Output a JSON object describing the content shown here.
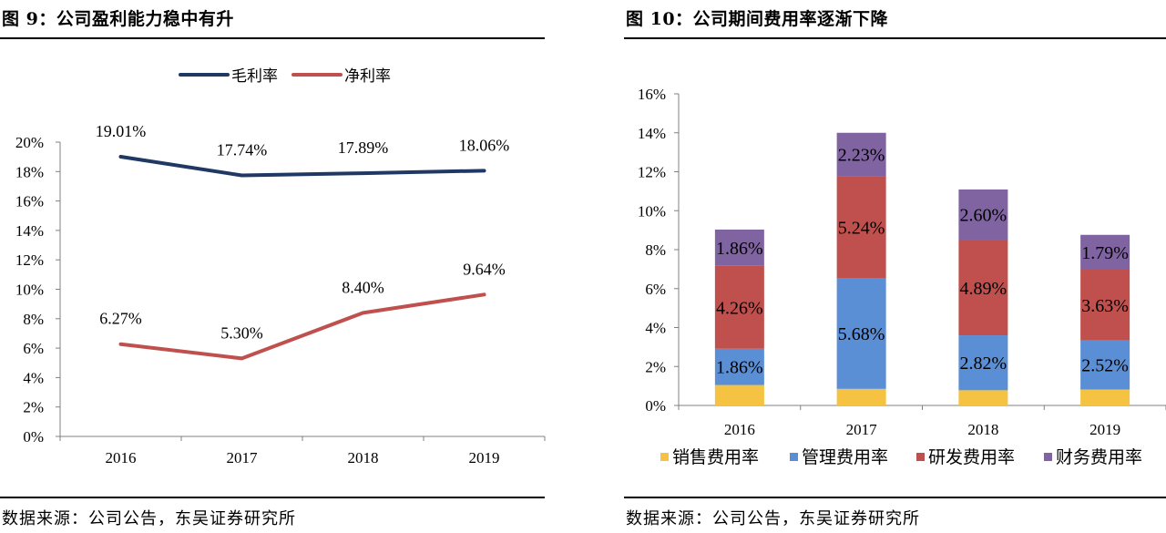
{
  "left": {
    "title": "图 9：公司盈利能力稳中有升",
    "source": "数据来源：公司公告，东吴证券研究所"
  },
  "right": {
    "title": "图 10：公司期间费用率逐渐下降",
    "source": "数据来源：公司公告，东吴证券研究所"
  },
  "colors": {
    "gross": "#1f3864",
    "net": "#c0504d",
    "sales": "#f5c242",
    "mgmt": "#5b8fd5",
    "rd": "#c0504d",
    "fin": "#8064a2",
    "axis": "#808080"
  },
  "chart_data": [
    {
      "type": "line",
      "categories": [
        "2016",
        "2017",
        "2018",
        "2019"
      ],
      "ylim": [
        0,
        20
      ],
      "yticks": [
        "0%",
        "2%",
        "4%",
        "6%",
        "8%",
        "10%",
        "12%",
        "14%",
        "16%",
        "18%",
        "20%"
      ],
      "series": [
        {
          "name": "毛利率",
          "values": [
            19.01,
            17.74,
            17.89,
            18.06
          ],
          "labels": [
            "19.01%",
            "17.74%",
            "17.89%",
            "18.06%"
          ]
        },
        {
          "name": "净利率",
          "values": [
            6.27,
            5.3,
            8.4,
            9.64
          ],
          "labels": [
            "6.27%",
            "5.30%",
            "8.40%",
            "9.64%"
          ]
        }
      ],
      "legend": "top"
    },
    {
      "type": "bar",
      "stacked": true,
      "categories": [
        "2016",
        "2017",
        "2018",
        "2019"
      ],
      "ylim": [
        0,
        16
      ],
      "yticks": [
        "0%",
        "2%",
        "4%",
        "6%",
        "8%",
        "10%",
        "12%",
        "14%",
        "16%"
      ],
      "series": [
        {
          "name": "销售费用率",
          "values": [
            1.05,
            0.85,
            0.78,
            0.82
          ],
          "labels": []
        },
        {
          "name": "管理费用率",
          "values": [
            1.86,
            5.68,
            2.82,
            2.52
          ],
          "labels": [
            "1.86%",
            "5.68%",
            "2.82%",
            "2.52%"
          ]
        },
        {
          "name": "研发费用率",
          "values": [
            4.26,
            5.24,
            4.89,
            3.63
          ],
          "labels": [
            "4.26%",
            "5.24%",
            "4.89%",
            "3.63%"
          ]
        },
        {
          "name": "财务费用率",
          "values": [
            1.86,
            2.23,
            2.6,
            1.79
          ],
          "labels": [
            "1.86%",
            "2.23%",
            "2.60%",
            "1.79%"
          ]
        }
      ],
      "legend": "bottom"
    }
  ]
}
